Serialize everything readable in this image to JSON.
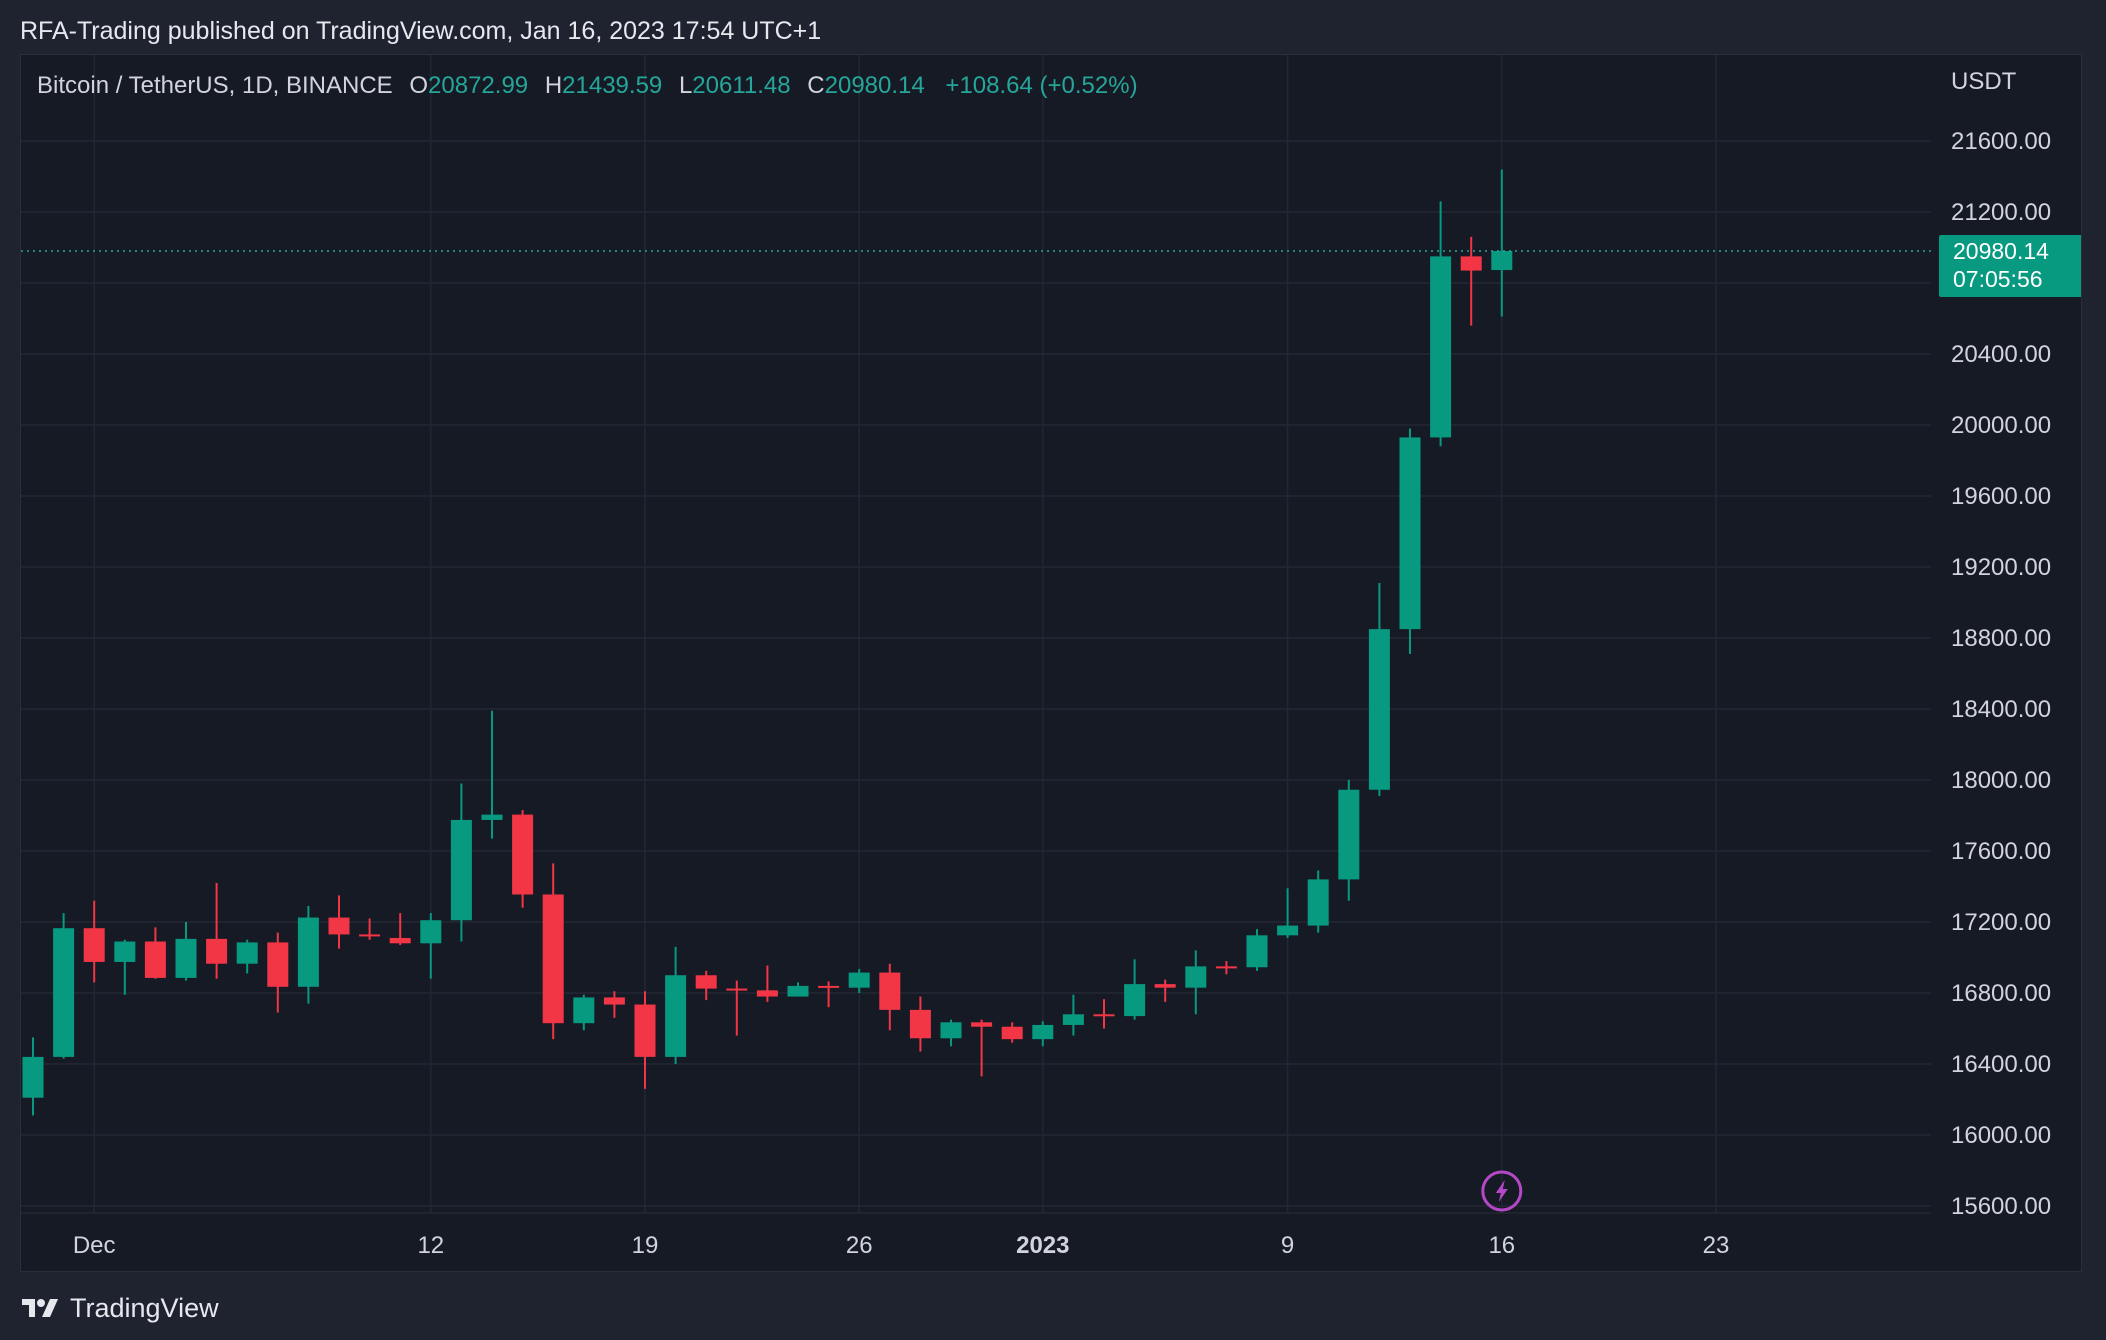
{
  "header": {
    "published_line": "RFA-Trading published on TradingView.com, Jan 16, 2023 17:54 UTC+1"
  },
  "legend": {
    "symbol": "Bitcoin / TetherUS, 1D, BINANCE",
    "open_key": "O",
    "open": "20872.99",
    "high_key": "H",
    "high": "21439.59",
    "low_key": "L",
    "low": "20611.48",
    "close_key": "C",
    "close": "20980.14",
    "change": "+108.64 (+0.52%)"
  },
  "price_axis": {
    "currency": "USDT",
    "last_price": "20980.14",
    "countdown": "07:05:56"
  },
  "footer": {
    "brand": "TradingView"
  },
  "colors": {
    "up": "#089981",
    "down": "#f23645",
    "grid": "#232734",
    "bg": "#161a25",
    "text": "#d1d4dc"
  },
  "icons": {
    "flash_marker": "lightning-bolt-icon",
    "brand_logo": "tradingview-logo-icon"
  },
  "chart_data": {
    "type": "candlestick",
    "title": "Bitcoin / TetherUS, 1D, BINANCE",
    "ylabel": "USDT",
    "ylim": [
      15600,
      21900
    ],
    "y_ticks": [
      15600,
      16000,
      16400,
      16800,
      17200,
      17600,
      18000,
      18400,
      18800,
      19200,
      19600,
      20000,
      20400,
      21200,
      21600
    ],
    "x_ticks": [
      {
        "label": "Dec",
        "index": 2,
        "bold": false
      },
      {
        "label": "12",
        "index": 13,
        "bold": false
      },
      {
        "label": "19",
        "index": 20,
        "bold": false
      },
      {
        "label": "26",
        "index": 27,
        "bold": false
      },
      {
        "label": "2023",
        "index": 33,
        "bold": true
      },
      {
        "label": "9",
        "index": 41,
        "bold": false
      },
      {
        "label": "16",
        "index": 48,
        "bold": false
      },
      {
        "label": "23",
        "index": 55,
        "bold": false
      }
    ],
    "grid": true,
    "last_price_line": 20980.14,
    "candles": [
      {
        "d": "Nov 29",
        "o": 16210,
        "h": 16550,
        "l": 16110,
        "c": 16440
      },
      {
        "d": "Nov 30",
        "o": 16440,
        "h": 17250,
        "l": 16430,
        "c": 17165
      },
      {
        "d": "Dec 1",
        "o": 17165,
        "h": 17320,
        "l": 16860,
        "c": 16975
      },
      {
        "d": "Dec 2",
        "o": 16975,
        "h": 17100,
        "l": 16790,
        "c": 17090
      },
      {
        "d": "Dec 3",
        "o": 17090,
        "h": 17170,
        "l": 16880,
        "c": 16885
      },
      {
        "d": "Dec 4",
        "o": 16885,
        "h": 17200,
        "l": 16870,
        "c": 17105
      },
      {
        "d": "Dec 5",
        "o": 17105,
        "h": 17420,
        "l": 16880,
        "c": 16965
      },
      {
        "d": "Dec 6",
        "o": 16965,
        "h": 17100,
        "l": 16910,
        "c": 17085
      },
      {
        "d": "Dec 7",
        "o": 17085,
        "h": 17140,
        "l": 16690,
        "c": 16835
      },
      {
        "d": "Dec 8",
        "o": 16835,
        "h": 17290,
        "l": 16740,
        "c": 17225
      },
      {
        "d": "Dec 9",
        "o": 17225,
        "h": 17350,
        "l": 17050,
        "c": 17130
      },
      {
        "d": "Dec 10",
        "o": 17130,
        "h": 17220,
        "l": 17100,
        "c": 17125
      },
      {
        "d": "Dec 11",
        "o": 17110,
        "h": 17250,
        "l": 17070,
        "c": 17080
      },
      {
        "d": "Dec 12",
        "o": 17080,
        "h": 17250,
        "l": 16880,
        "c": 17210
      },
      {
        "d": "Dec 13",
        "o": 17210,
        "h": 17980,
        "l": 17090,
        "c": 17775
      },
      {
        "d": "Dec 14",
        "o": 17775,
        "h": 18390,
        "l": 17670,
        "c": 17805
      },
      {
        "d": "Dec 15",
        "o": 17805,
        "h": 17830,
        "l": 17280,
        "c": 17355
      },
      {
        "d": "Dec 16",
        "o": 17355,
        "h": 17530,
        "l": 16540,
        "c": 16630
      },
      {
        "d": "Dec 17",
        "o": 16630,
        "h": 16790,
        "l": 16590,
        "c": 16775
      },
      {
        "d": "Dec 18",
        "o": 16775,
        "h": 16810,
        "l": 16660,
        "c": 16735
      },
      {
        "d": "Dec 19",
        "o": 16735,
        "h": 16810,
        "l": 16260,
        "c": 16440
      },
      {
        "d": "Dec 20",
        "o": 16440,
        "h": 17060,
        "l": 16400,
        "c": 16900
      },
      {
        "d": "Dec 21",
        "o": 16900,
        "h": 16925,
        "l": 16760,
        "c": 16825
      },
      {
        "d": "Dec 22",
        "o": 16825,
        "h": 16870,
        "l": 16560,
        "c": 16815
      },
      {
        "d": "Dec 23",
        "o": 16815,
        "h": 16955,
        "l": 16750,
        "c": 16780
      },
      {
        "d": "Dec 24",
        "o": 16780,
        "h": 16860,
        "l": 16780,
        "c": 16840
      },
      {
        "d": "Dec 25",
        "o": 16840,
        "h": 16865,
        "l": 16720,
        "c": 16830
      },
      {
        "d": "Dec 26",
        "o": 16830,
        "h": 16935,
        "l": 16800,
        "c": 16915
      },
      {
        "d": "Dec 27",
        "o": 16915,
        "h": 16965,
        "l": 16590,
        "c": 16705
      },
      {
        "d": "Dec 28",
        "o": 16705,
        "h": 16780,
        "l": 16470,
        "c": 16545
      },
      {
        "d": "Dec 29",
        "o": 16545,
        "h": 16650,
        "l": 16500,
        "c": 16635
      },
      {
        "d": "Dec 30",
        "o": 16635,
        "h": 16650,
        "l": 16330,
        "c": 16610
      },
      {
        "d": "Dec 31",
        "o": 16610,
        "h": 16635,
        "l": 16520,
        "c": 16540
      },
      {
        "d": "Jan 1",
        "o": 16540,
        "h": 16640,
        "l": 16500,
        "c": 16620
      },
      {
        "d": "Jan 2",
        "o": 16620,
        "h": 16790,
        "l": 16560,
        "c": 16680
      },
      {
        "d": "Jan 3",
        "o": 16680,
        "h": 16765,
        "l": 16600,
        "c": 16670
      },
      {
        "d": "Jan 4",
        "o": 16670,
        "h": 16990,
        "l": 16650,
        "c": 16850
      },
      {
        "d": "Jan 5",
        "o": 16850,
        "h": 16875,
        "l": 16750,
        "c": 16830
      },
      {
        "d": "Jan 6",
        "o": 16830,
        "h": 17040,
        "l": 16680,
        "c": 16950
      },
      {
        "d": "Jan 7",
        "o": 16950,
        "h": 16980,
        "l": 16905,
        "c": 16945
      },
      {
        "d": "Jan 8",
        "o": 16945,
        "h": 17160,
        "l": 16925,
        "c": 17125
      },
      {
        "d": "Jan 9",
        "o": 17125,
        "h": 17390,
        "l": 17110,
        "c": 17180
      },
      {
        "d": "Jan 10",
        "o": 17180,
        "h": 17490,
        "l": 17140,
        "c": 17440
      },
      {
        "d": "Jan 11",
        "o": 17440,
        "h": 18000,
        "l": 17320,
        "c": 17945
      },
      {
        "d": "Jan 12",
        "o": 17945,
        "h": 19110,
        "l": 17910,
        "c": 18850
      },
      {
        "d": "Jan 13",
        "o": 18850,
        "h": 19980,
        "l": 18710,
        "c": 19930
      },
      {
        "d": "Jan 14",
        "o": 19930,
        "h": 21260,
        "l": 19880,
        "c": 20950
      },
      {
        "d": "Jan 15",
        "o": 20950,
        "h": 21060,
        "l": 20560,
        "c": 20870
      },
      {
        "d": "Jan 16",
        "o": 20872.99,
        "h": 21439.59,
        "l": 20611.48,
        "c": 20980.14
      }
    ]
  }
}
